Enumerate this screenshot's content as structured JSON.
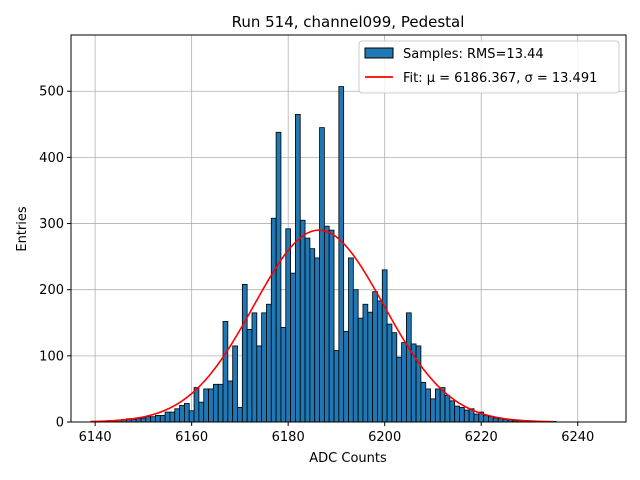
{
  "chart_data": {
    "type": "bar",
    "title": "Run 514, channel099, Pedestal",
    "xlabel": "ADC Counts",
    "ylabel": "Entries",
    "xlim": [
      6135,
      6250
    ],
    "ylim": [
      0,
      585
    ],
    "xticks": [
      6140,
      6160,
      6180,
      6200,
      6220,
      6240
    ],
    "yticks": [
      0,
      100,
      200,
      300,
      400,
      500
    ],
    "grid": true,
    "legend_position": "top-right",
    "bin_width": 1,
    "colors": {
      "bars": "#1f77b4",
      "bar_edge": "#000000",
      "fit": "#ff0000"
    },
    "series": [
      {
        "name": "Samples: RMS=13.44",
        "kind": "histogram",
        "x": [
          6140,
          6141,
          6142,
          6143,
          6144,
          6145,
          6146,
          6147,
          6148,
          6149,
          6150,
          6151,
          6152,
          6153,
          6154,
          6155,
          6156,
          6157,
          6158,
          6159,
          6160,
          6161,
          6162,
          6163,
          6164,
          6165,
          6166,
          6167,
          6168,
          6169,
          6170,
          6171,
          6172,
          6173,
          6174,
          6175,
          6176,
          6177,
          6178,
          6179,
          6180,
          6181,
          6182,
          6183,
          6184,
          6185,
          6186,
          6187,
          6188,
          6189,
          6190,
          6191,
          6192,
          6193,
          6194,
          6195,
          6196,
          6197,
          6198,
          6199,
          6200,
          6201,
          6202,
          6203,
          6204,
          6205,
          6206,
          6207,
          6208,
          6209,
          6210,
          6211,
          6212,
          6213,
          6214,
          6215,
          6216,
          6217,
          6218,
          6219,
          6220,
          6221,
          6222,
          6223,
          6224,
          6225,
          6226,
          6227,
          6228,
          6229,
          6230,
          6231,
          6232,
          6233,
          6234,
          6235
        ],
        "values": [
          1,
          1,
          1,
          2,
          2,
          3,
          4,
          5,
          4,
          5,
          6,
          8,
          8,
          10,
          10,
          15,
          15,
          20,
          25,
          28,
          17,
          52,
          30,
          50,
          50,
          57,
          57,
          152,
          62,
          115,
          22,
          208,
          140,
          165,
          115,
          165,
          178,
          308,
          438,
          143,
          292,
          225,
          465,
          305,
          278,
          262,
          248,
          445,
          296,
          290,
          108,
          507,
          137,
          248,
          200,
          157,
          178,
          166,
          197,
          183,
          230,
          148,
          135,
          98,
          120,
          165,
          118,
          115,
          60,
          50,
          35,
          50,
          52,
          40,
          32,
          24,
          22,
          18,
          20,
          12,
          15,
          10,
          8,
          6,
          5,
          4,
          3,
          2,
          2,
          1,
          1,
          1,
          1,
          1,
          1,
          1
        ]
      },
      {
        "name": "Fit: μ = 6186.367, σ = 13.491",
        "kind": "gaussian",
        "mu": 6186.367,
        "sigma": 13.491,
        "amplitude": 290,
        "x_range": [
          6139,
          6235
        ]
      }
    ]
  }
}
